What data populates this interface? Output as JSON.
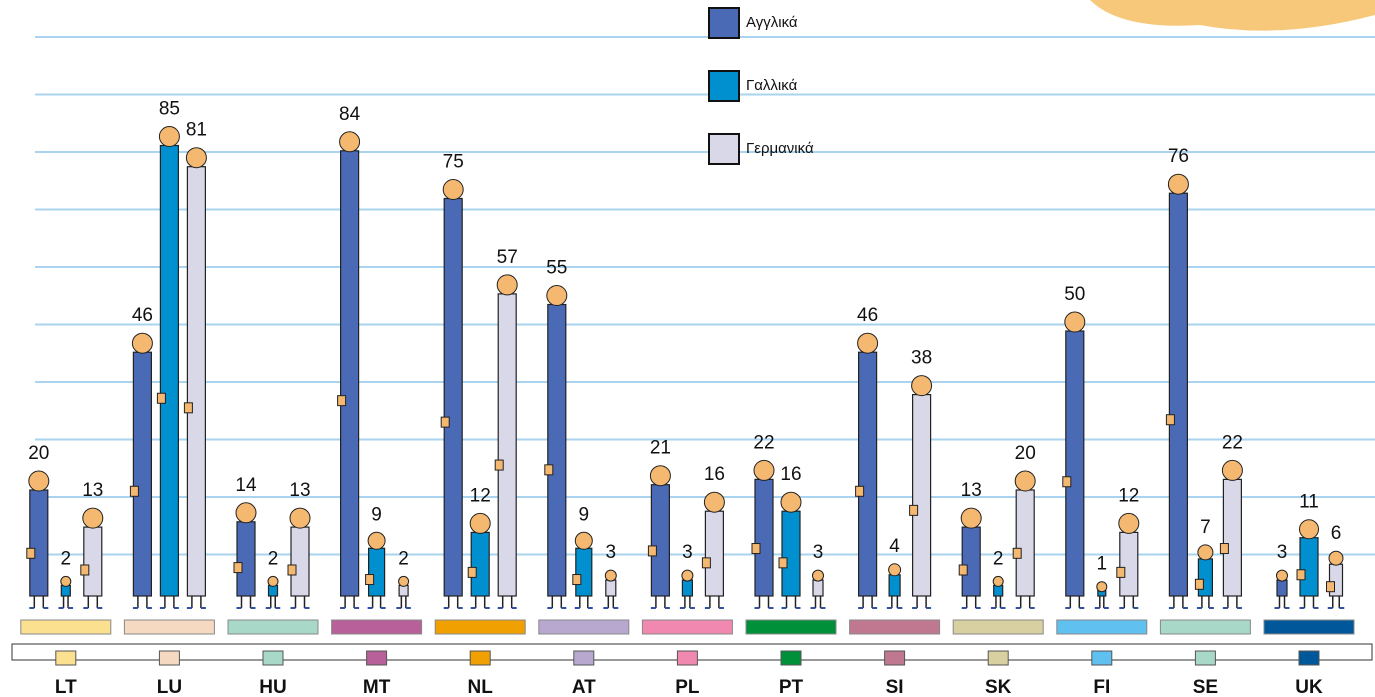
{
  "chart_data": {
    "type": "bar",
    "categories": [
      "LT",
      "LU",
      "HU",
      "MT",
      "NL",
      "AT",
      "PL",
      "PT",
      "SI",
      "SK",
      "FI",
      "SE",
      "UK"
    ],
    "category_colors": [
      "#fbe08f",
      "#f5d9c0",
      "#a8d8c8",
      "#b8609a",
      "#f0a000",
      "#b8a8d0",
      "#f088b0",
      "#00903a",
      "#c07890",
      "#d8d0a0",
      "#60c0f0",
      "#a8d8c8",
      "#00589a"
    ],
    "series": [
      {
        "name": "Αγγλικά",
        "color": "#4a6ab5",
        "values": [
          20,
          46,
          14,
          84,
          75,
          55,
          21,
          22,
          46,
          13,
          50,
          76,
          3
        ]
      },
      {
        "name": "Γαλλικά",
        "color": "#0090d0",
        "values": [
          2,
          85,
          2,
          9,
          12,
          9,
          3,
          16,
          4,
          2,
          1,
          7,
          11
        ]
      },
      {
        "name": "Γερμανικά",
        "color": "#d8d8e8",
        "values": [
          13,
          81,
          13,
          2,
          57,
          3,
          16,
          3,
          38,
          20,
          12,
          22,
          6
        ]
      }
    ],
    "grid": true
  }
}
